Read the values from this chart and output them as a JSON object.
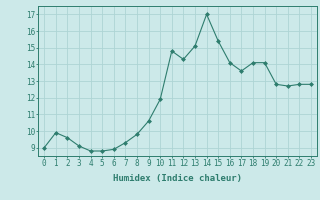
{
  "x": [
    0,
    1,
    2,
    3,
    4,
    5,
    6,
    7,
    8,
    9,
    10,
    11,
    12,
    13,
    14,
    15,
    16,
    17,
    18,
    19,
    20,
    21,
    22,
    23
  ],
  "y": [
    9.0,
    9.9,
    9.6,
    9.1,
    8.8,
    8.8,
    8.9,
    9.3,
    9.8,
    10.6,
    11.9,
    14.8,
    14.3,
    15.1,
    17.0,
    15.4,
    14.1,
    13.6,
    14.1,
    14.1,
    12.8,
    12.7,
    12.8,
    12.8
  ],
  "line_color": "#2e7d6e",
  "marker": "D",
  "marker_size": 2.0,
  "bg_color": "#cce9e9",
  "grid_color": "#aed4d4",
  "xlabel": "Humidex (Indice chaleur)",
  "xlim": [
    -0.5,
    23.5
  ],
  "ylim": [
    8.5,
    17.5
  ],
  "yticks": [
    9,
    10,
    11,
    12,
    13,
    14,
    15,
    16,
    17
  ],
  "tick_fontsize": 5.5,
  "xlabel_fontsize": 6.5
}
